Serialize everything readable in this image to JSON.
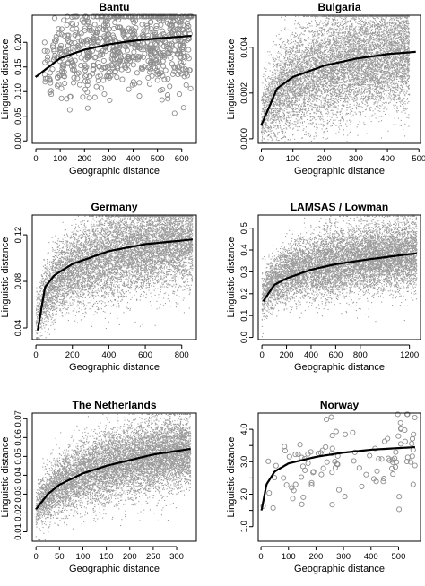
{
  "chart_data": [
    {
      "type": "scatter",
      "title": "Bantu",
      "xlabel": "Geographic distance",
      "ylabel": "Linguistic distance",
      "xlim": [
        -15,
        660
      ],
      "ylim": [
        -0.005,
        0.255
      ],
      "xticks": [
        0,
        100,
        200,
        300,
        400,
        500,
        600
      ],
      "yticks": [
        0.0,
        0.05,
        0.1,
        0.15,
        0.2
      ],
      "ytick_labels": [
        "0.00",
        "0.05",
        "0.10",
        "0.15",
        "0.20"
      ],
      "marker": "circle",
      "point_count": 700,
      "point_color": "#8c8c8c",
      "cloud": {
        "x_max": 640,
        "center_at_0": 0.13,
        "center_at_max": 0.21,
        "spread": 0.045
      },
      "curve": {
        "model": "logarithmic",
        "points": [
          [
            0,
            0.13
          ],
          [
            100,
            0.168
          ],
          [
            200,
            0.185
          ],
          [
            300,
            0.196
          ],
          [
            400,
            0.203
          ],
          [
            500,
            0.208
          ],
          [
            640,
            0.213
          ]
        ]
      }
    },
    {
      "type": "scatter",
      "title": "Bulgaria",
      "xlabel": "Geographic distance",
      "ylabel": "Linguistic distance",
      "xlim": [
        -10,
        505
      ],
      "ylim": [
        -0.0002,
        0.0054
      ],
      "xticks": [
        0,
        100,
        200,
        300,
        400,
        500
      ],
      "yticks": [
        0.0,
        0.002,
        0.004
      ],
      "ytick_labels": [
        "0.000",
        "0.002",
        "0.004"
      ],
      "marker": "dot",
      "point_count": 9000,
      "point_color": "#9a9a9a",
      "cloud": {
        "x_max": 470,
        "center_at_0": 0.0007,
        "center_at_max": 0.0038,
        "spread": 0.0011
      },
      "curve": {
        "model": "logarithmic",
        "points": [
          [
            0,
            0.0006
          ],
          [
            50,
            0.0022
          ],
          [
            100,
            0.0027
          ],
          [
            200,
            0.0032
          ],
          [
            300,
            0.0035
          ],
          [
            400,
            0.0037
          ],
          [
            490,
            0.0038
          ]
        ]
      }
    },
    {
      "type": "scatter",
      "title": "Germany",
      "xlabel": "Geographic distance",
      "ylabel": "Linguistic distance",
      "xlim": [
        -20,
        880
      ],
      "ylim": [
        0.03,
        0.137
      ],
      "xticks": [
        0,
        200,
        400,
        600,
        800
      ],
      "yticks": [
        0.04,
        0.08,
        0.12
      ],
      "ytick_labels": [
        "0.04",
        "0.08",
        "0.12"
      ],
      "marker": "dot",
      "point_count": 9000,
      "point_color": "#9a9a9a",
      "cloud": {
        "x_max": 860,
        "center_at_0": 0.045,
        "center_at_max": 0.116,
        "spread": 0.017
      },
      "curve": {
        "model": "logarithmic",
        "points": [
          [
            10,
            0.038
          ],
          [
            50,
            0.075
          ],
          [
            100,
            0.085
          ],
          [
            200,
            0.095
          ],
          [
            400,
            0.106
          ],
          [
            600,
            0.112
          ],
          [
            860,
            0.116
          ]
        ]
      }
    },
    {
      "type": "scatter",
      "title": "LAMSAS / Lowman",
      "xlabel": "Geographic distance",
      "ylabel": "Linguistic distance",
      "xlim": [
        -30,
        1290
      ],
      "ylim": [
        -0.01,
        0.56
      ],
      "xticks": [
        0,
        200,
        400,
        600,
        800,
        1200
      ],
      "yticks": [
        0.0,
        0.1,
        0.2,
        0.3,
        0.4,
        0.5
      ],
      "ytick_labels": [
        "0.0",
        "0.1",
        "0.2",
        "0.3",
        "0.4",
        "0.5"
      ],
      "marker": "dot",
      "point_count": 9000,
      "point_color": "#9a9a9a",
      "cloud": {
        "x_max": 1260,
        "center_at_0": 0.17,
        "center_at_max": 0.38,
        "spread": 0.07
      },
      "curve": {
        "model": "logarithmic",
        "points": [
          [
            10,
            0.165
          ],
          [
            100,
            0.24
          ],
          [
            200,
            0.27
          ],
          [
            400,
            0.31
          ],
          [
            600,
            0.335
          ],
          [
            900,
            0.36
          ],
          [
            1260,
            0.385
          ]
        ]
      }
    },
    {
      "type": "scatter",
      "title": "The Netherlands",
      "xlabel": "Geographic distance",
      "ylabel": "Linguistic distance",
      "xlim": [
        -8,
        342
      ],
      "ylim": [
        0.005,
        0.073
      ],
      "xticks": [
        0,
        50,
        100,
        150,
        200,
        250,
        300
      ],
      "yticks": [
        0.01,
        0.02,
        0.03,
        0.04,
        0.05,
        0.06,
        0.07
      ],
      "ytick_labels": [
        "0.01",
        "0.02",
        "0.03",
        "0.04",
        "0.05",
        "0.06",
        "0.07"
      ],
      "marker": "dot",
      "point_count": 9000,
      "point_color": "#9a9a9a",
      "cloud": {
        "x_max": 330,
        "center_at_0": 0.02,
        "center_at_max": 0.053,
        "spread": 0.0085
      },
      "curve": {
        "model": "logarithmic",
        "points": [
          [
            0,
            0.022
          ],
          [
            25,
            0.03
          ],
          [
            50,
            0.035
          ],
          [
            100,
            0.041
          ],
          [
            150,
            0.045
          ],
          [
            200,
            0.048
          ],
          [
            250,
            0.051
          ],
          [
            330,
            0.054
          ]
        ]
      }
    },
    {
      "type": "scatter",
      "title": "Norway",
      "xlabel": "Geographic distance",
      "ylabel": "Linguistic distance",
      "xlim": [
        -10,
        580
      ],
      "ylim": [
        0.55,
        4.5
      ],
      "xticks": [
        0,
        100,
        200,
        300,
        400,
        500
      ],
      "yticks": [
        1.0,
        1.5,
        2.0,
        2.5,
        3.0,
        3.5,
        4.0
      ],
      "ytick_labels": [
        "1.0",
        "1.5",
        "2.0",
        "2.5",
        "3.0",
        "3.5",
        "4.0"
      ],
      "ytick_labeled": [
        true,
        false,
        true,
        false,
        true,
        false,
        true
      ],
      "marker": "circle",
      "point_count": 105,
      "point_color": "#8c8c8c",
      "cloud": {
        "x_max": 560,
        "center_at_0": 1.9,
        "center_at_max": 3.4,
        "spread": 0.6
      },
      "curve": {
        "model": "logarithmic",
        "points": [
          [
            2,
            1.5
          ],
          [
            20,
            2.3
          ],
          [
            50,
            2.7
          ],
          [
            100,
            2.95
          ],
          [
            200,
            3.15
          ],
          [
            300,
            3.28
          ],
          [
            400,
            3.37
          ],
          [
            560,
            3.45
          ]
        ]
      }
    }
  ]
}
